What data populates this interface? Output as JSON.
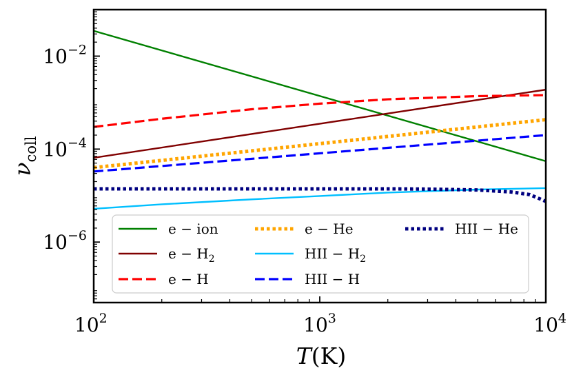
{
  "chart_data": {
    "type": "line",
    "title": "",
    "x_scale": "log",
    "y_scale": "log",
    "xlim": [
      100,
      10000
    ],
    "ylim": [
      5e-08,
      0.1
    ],
    "xlabel": {
      "main": "T",
      "paren": "(K)"
    },
    "ylabel": {
      "main": "ν",
      "sub": "coll"
    },
    "x_ticks": [
      {
        "value": 100,
        "base": "10",
        "exp": "2"
      },
      {
        "value": 1000,
        "base": "10",
        "exp": "3"
      },
      {
        "value": 10000,
        "base": "10",
        "exp": "4"
      }
    ],
    "y_ticks": [
      {
        "value": 1e-06,
        "base": "10",
        "exp": "−6"
      },
      {
        "value": 0.0001,
        "base": "10",
        "exp": "−4"
      },
      {
        "value": 0.01,
        "base": "10",
        "exp": "−2"
      }
    ],
    "grid": false,
    "legend_position": "lower-center",
    "legend_columns": 3,
    "series": [
      {
        "name": "e − ion",
        "label_main": "e − ion",
        "label_sub": "",
        "color": "#008000",
        "style": "solid",
        "x": [
          100,
          10000
        ],
        "y": [
          0.035,
          5.5e-05
        ]
      },
      {
        "name": "e − H2",
        "label_main": "e − H",
        "label_sub": "2",
        "color": "#800000",
        "style": "solid",
        "x": [
          100,
          10000
        ],
        "y": [
          6.5e-05,
          0.0019
        ]
      },
      {
        "name": "e − H",
        "label_main": "e − H",
        "label_sub": "",
        "color": "#ff0000",
        "style": "dashed",
        "x": [
          100,
          200,
          500,
          1000,
          2000,
          5000,
          10000
        ],
        "y": [
          0.0003,
          0.00045,
          0.00072,
          0.00095,
          0.00118,
          0.00138,
          0.00145
        ]
      },
      {
        "name": "e − He",
        "label_main": "e − He",
        "label_sub": "",
        "color": "#ffa500",
        "style": "dotted",
        "x": [
          100,
          10000
        ],
        "y": [
          4e-05,
          0.00043
        ]
      },
      {
        "name": "HII − H2",
        "label_main": "HII − H",
        "label_sub": "2",
        "color": "#00bfff",
        "style": "solid",
        "x": [
          100,
          200,
          500,
          1000,
          2000,
          5000,
          10000
        ],
        "y": [
          5.2e-06,
          6.5e-06,
          8.3e-06,
          9.8e-06,
          1.16e-05,
          1.35e-05,
          1.45e-05
        ]
      },
      {
        "name": "HII − H",
        "label_main": "HII − H",
        "label_sub": "",
        "color": "#0000ff",
        "style": "dashed",
        "x": [
          100,
          10000
        ],
        "y": [
          3.3e-05,
          0.0002
        ]
      },
      {
        "name": "HII − He",
        "label_main": "HII − He",
        "label_sub": "",
        "color": "#000080",
        "style": "dotted",
        "x": [
          100,
          1000,
          2000,
          3000,
          5000,
          7000,
          8500,
          10000
        ],
        "y": [
          1.4e-05,
          1.4e-05,
          1.4e-05,
          1.38e-05,
          1.32e-05,
          1.2e-05,
          1.05e-05,
          7.5e-06
        ]
      }
    ]
  }
}
